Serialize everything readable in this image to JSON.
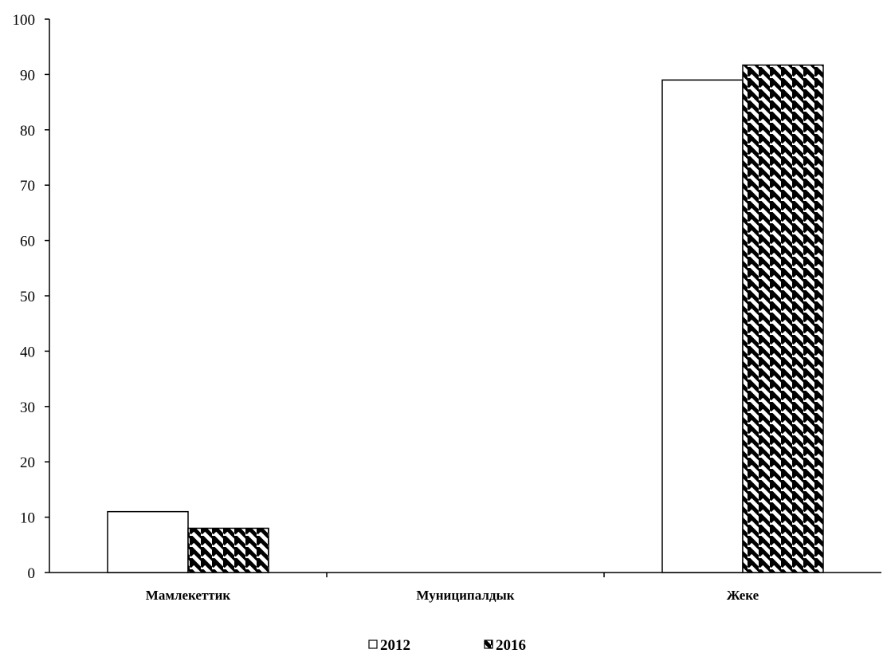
{
  "chart_data": {
    "type": "bar",
    "title": "",
    "xlabel": "",
    "ylabel": "",
    "categories": [
      "Мамлекеттик",
      "Муниципалдык",
      "Жеке"
    ],
    "series": [
      {
        "name": "2012",
        "values": [
          11,
          0,
          89
        ],
        "fill": "#ffffff",
        "pattern": "none"
      },
      {
        "name": "2016",
        "values": [
          8,
          0,
          91.7
        ],
        "fill": "#000000",
        "pattern": "diagonal-hatch"
      }
    ],
    "ylim": [
      0,
      100
    ],
    "yticks": [
      "0",
      "10",
      "20",
      "30",
      "40",
      "50",
      "60",
      "70",
      "80",
      "90",
      "100"
    ],
    "grid": false,
    "legend_position": "bottom-center"
  }
}
